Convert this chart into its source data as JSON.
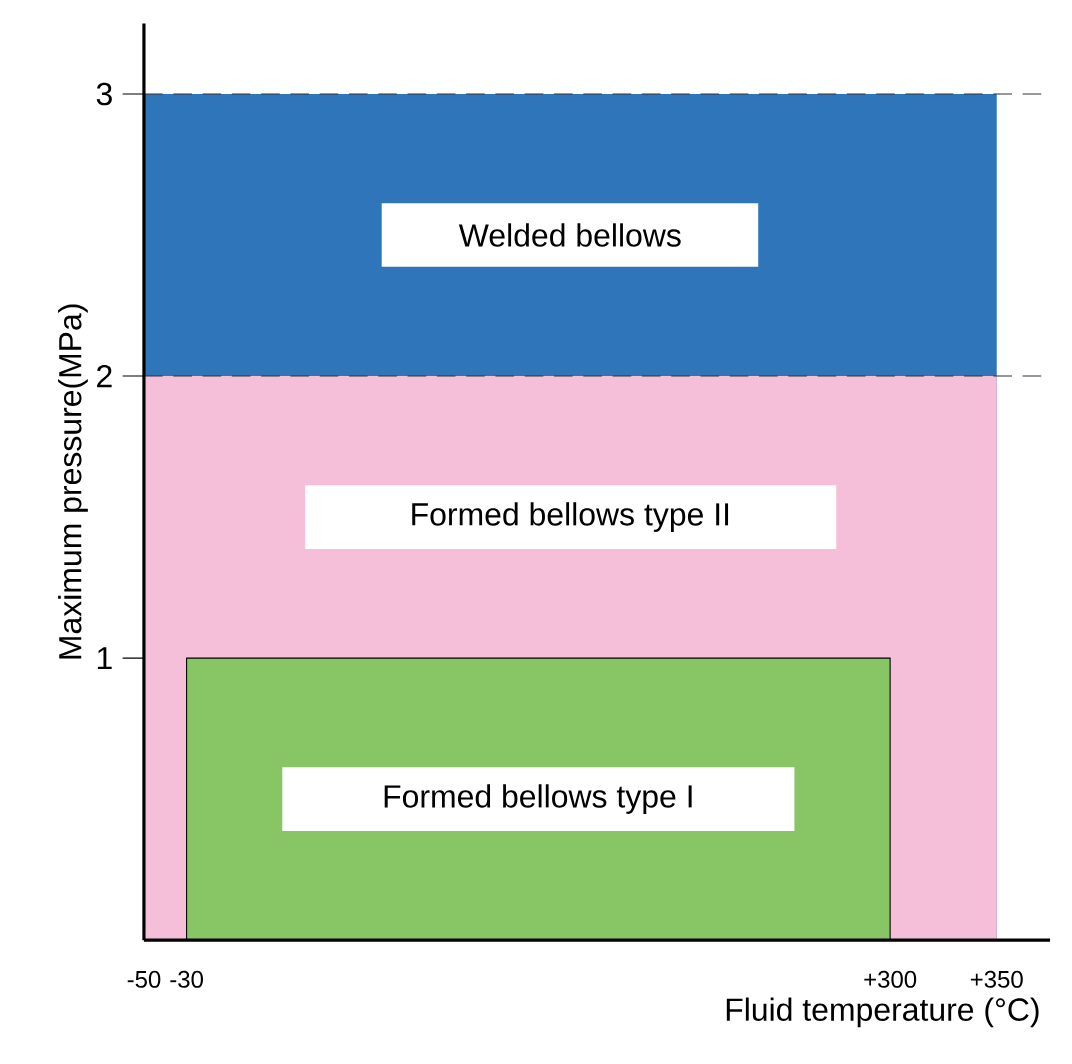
{
  "chart_data": {
    "type": "area",
    "xlabel": "Fluid temperature (°C)",
    "ylabel": "Maximum pressure(MPa)",
    "xlim": [
      -50,
      375
    ],
    "ylim": [
      0,
      3.25
    ],
    "xticks": [
      -50,
      -30,
      {
        "value": 300,
        "label": "+300"
      },
      {
        "value": 350,
        "label": "+350"
      }
    ],
    "yticks": [
      1,
      2,
      3
    ],
    "series": [
      {
        "name": "Welded bellows",
        "color": "#2e75b9",
        "x": [
          -50,
          350
        ],
        "values": [
          3,
          3
        ]
      },
      {
        "name": "Formed bellows type II",
        "color": "#f5bfd9",
        "x": [
          -50,
          350
        ],
        "values": [
          2,
          2
        ]
      },
      {
        "name": "Formed bellows type I",
        "color": "#88c665",
        "x": [
          -30,
          300
        ],
        "values": [
          1,
          1
        ]
      }
    ],
    "ref_lines": [
      {
        "axis": "y",
        "value": 2,
        "line_style": "dashed"
      },
      {
        "axis": "y",
        "value": 3,
        "line_style": "dashed"
      }
    ],
    "grid": false
  }
}
